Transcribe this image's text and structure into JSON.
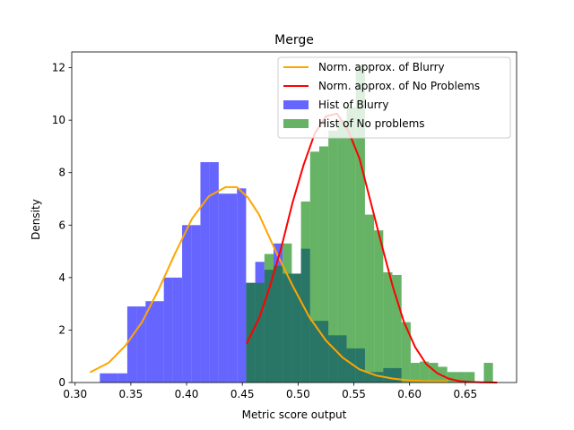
{
  "chart_data": {
    "type": "bar",
    "title": "Merge",
    "xlabel": "Metric score output",
    "ylabel": "Density",
    "xlim": [
      0.297,
      0.696
    ],
    "ylim": [
      0,
      12.6
    ],
    "xticks": [
      0.3,
      0.35,
      0.4,
      0.45,
      0.5,
      0.55,
      0.6,
      0.65
    ],
    "xtick_labels": [
      "0.30",
      "0.35",
      "0.40",
      "0.45",
      "0.50",
      "0.55",
      "0.60",
      "0.65"
    ],
    "yticks": [
      0,
      2,
      4,
      6,
      8,
      10,
      12
    ],
    "ytick_labels": [
      "0",
      "2",
      "4",
      "6",
      "8",
      "10",
      "12"
    ],
    "grid": false,
    "legend_position": "upper-right",
    "legend": [
      {
        "label": "Norm. approx. of Blurry",
        "kind": "line",
        "color": "#ffa500"
      },
      {
        "label": "Norm. approx. of No Problems",
        "kind": "line",
        "color": "#ff0000"
      },
      {
        "label": "Hist of Blurry",
        "kind": "patch",
        "color": "#0000ff",
        "alpha": 0.6
      },
      {
        "label": "Hist of No problems",
        "kind": "patch",
        "color": "#008000",
        "alpha": 0.6
      }
    ],
    "series": [
      {
        "name": "Hist of Blurry",
        "kind": "hist",
        "color": "#0000ff",
        "alpha": 0.6,
        "bin_edges": [
          0.314,
          0.3222,
          0.3304,
          0.3386,
          0.3468,
          0.355,
          0.3632,
          0.3714,
          0.3796,
          0.3878,
          0.396,
          0.4042,
          0.4124,
          0.4206,
          0.4288,
          0.437,
          0.4452,
          0.4534,
          0.4616,
          0.4698,
          0.478,
          0.4862,
          0.4944,
          0.5026,
          0.5108,
          0.519,
          0.5272,
          0.5354,
          0.5436,
          0.5518,
          0.56,
          0.5682,
          0.5764,
          0.5846,
          0.5928,
          0.601,
          0.6092,
          0.6174,
          0.6256,
          0.6338
        ],
        "values": [
          0.0,
          0.35,
          0.35,
          0.35,
          2.9,
          2.9,
          3.1,
          3.1,
          4.0,
          4.0,
          6.0,
          6.0,
          8.4,
          8.4,
          7.2,
          7.2,
          7.4,
          3.8,
          4.6,
          4.3,
          5.3,
          4.15,
          4.15,
          5.1,
          2.35,
          2.35,
          1.8,
          1.8,
          1.3,
          1.3,
          0.4,
          0.4,
          0.55,
          0.55,
          0.0,
          0.0,
          0.0,
          0.0,
          0.0
        ]
      },
      {
        "name": "Hist of No problems",
        "kind": "hist",
        "color": "#008000",
        "alpha": 0.6,
        "bin_edges": [
          0.4534,
          0.4616,
          0.4698,
          0.478,
          0.4862,
          0.4944,
          0.5026,
          0.5108,
          0.519,
          0.5272,
          0.5354,
          0.5436,
          0.5518,
          0.56,
          0.5682,
          0.5764,
          0.5846,
          0.5928,
          0.601,
          0.6092,
          0.6174,
          0.6256,
          0.6338,
          0.642,
          0.6502,
          0.6584,
          0.6666,
          0.6748,
          0.683
        ],
        "values": [
          3.8,
          3.8,
          4.9,
          4.45,
          5.3,
          4.15,
          6.9,
          8.8,
          9.0,
          9.6,
          10.0,
          10.5,
          12.1,
          6.4,
          5.8,
          4.2,
          4.1,
          2.3,
          0.75,
          0.8,
          0.75,
          0.6,
          0.4,
          0.4,
          0.4,
          0.0,
          0.75,
          0.0
        ]
      },
      {
        "name": "Norm. approx. of Blurry",
        "kind": "line",
        "color": "#ffa500",
        "x": [
          0.314,
          0.33,
          0.345,
          0.36,
          0.375,
          0.39,
          0.405,
          0.42,
          0.435,
          0.445,
          0.455,
          0.465,
          0.48,
          0.495,
          0.51,
          0.525,
          0.54,
          0.555,
          0.57,
          0.585,
          0.6,
          0.615,
          0.634
        ],
        "y": [
          0.4,
          0.75,
          1.4,
          2.3,
          3.55,
          4.95,
          6.25,
          7.1,
          7.45,
          7.45,
          7.05,
          6.4,
          5.0,
          3.7,
          2.5,
          1.6,
          0.95,
          0.5,
          0.27,
          0.15,
          0.08,
          0.05,
          0.05
        ]
      },
      {
        "name": "Norm. approx. of No Problems",
        "kind": "line",
        "color": "#ff0000",
        "x": [
          0.454,
          0.465,
          0.475,
          0.485,
          0.495,
          0.505,
          0.515,
          0.525,
          0.535,
          0.545,
          0.555,
          0.565,
          0.575,
          0.585,
          0.595,
          0.605,
          0.615,
          0.625,
          0.635,
          0.645,
          0.655,
          0.665,
          0.678
        ],
        "y": [
          1.5,
          2.45,
          3.7,
          5.15,
          6.85,
          8.3,
          9.5,
          10.15,
          10.25,
          9.6,
          8.55,
          6.9,
          5.25,
          3.65,
          2.3,
          1.35,
          0.7,
          0.35,
          0.15,
          0.05,
          0.02,
          0.01,
          0.0
        ]
      }
    ]
  }
}
